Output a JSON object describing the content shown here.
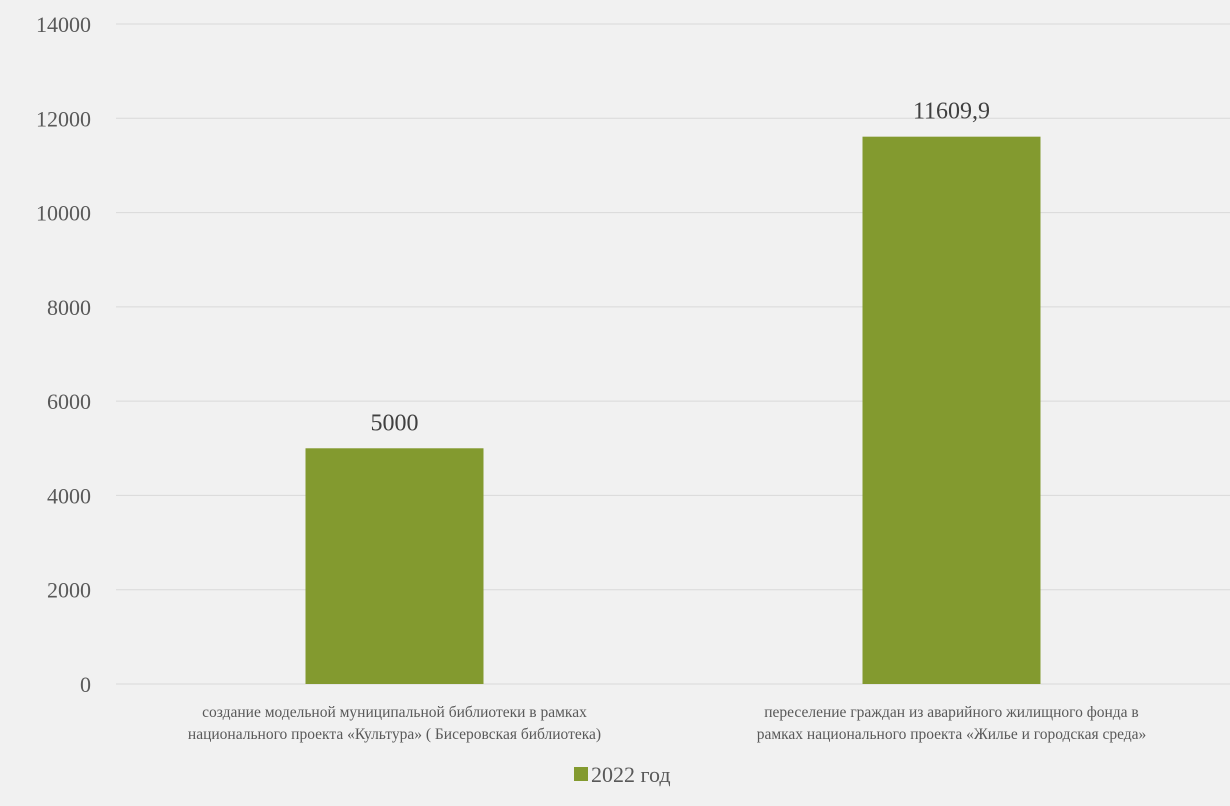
{
  "chart_data": {
    "type": "bar",
    "categories": [
      [
        "создание модельной муниципальной библиотеки в рамках",
        "национального проекта «Культура» ( Бисеровская библиотека)"
      ],
      [
        "переселение граждан из аварийного жилищного фонда в",
        "рамках национального проекта «Жилье и городская среда»"
      ]
    ],
    "series": [
      {
        "name": "2022 год",
        "values": [
          5000,
          11609.9
        ],
        "value_labels": [
          "5000",
          "11609,9"
        ],
        "color": "#839a2f"
      }
    ],
    "ylim": [
      0,
      14000
    ],
    "yticks": [
      0,
      2000,
      4000,
      6000,
      8000,
      10000,
      12000,
      14000
    ],
    "grid": true,
    "legend_position": "bottom",
    "title": "",
    "xlabel": "",
    "ylabel": ""
  },
  "colors": {
    "background": "#f1f1f1",
    "gridline": "#d9d9d9",
    "bar": "#839a2f"
  }
}
